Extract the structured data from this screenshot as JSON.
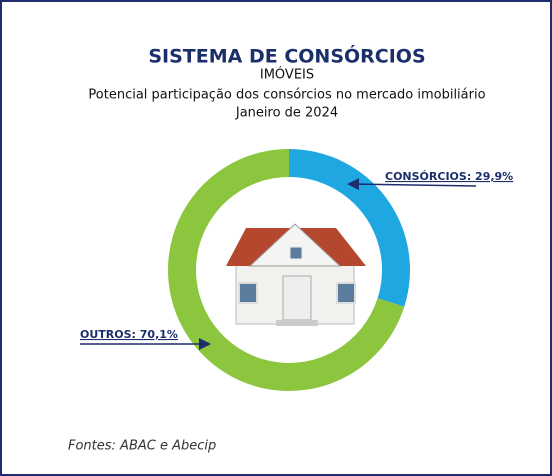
{
  "chart_data": {
    "type": "donut",
    "title": "SISTEMA DE CONSÓRCIOS",
    "subtitle": [
      "IMÓVEIS",
      "Potencial participação dos consórcios no mercado imobiliário",
      "Janeiro de 2024"
    ],
    "values": [
      29.9,
      70.1
    ],
    "value_labels": [
      "CONSÓRCIOS: 29,9%",
      "OUTROS: 70,1%"
    ],
    "colors": [
      "#1ea7e1",
      "#8cc63f"
    ],
    "source": "Fontes: ABAC e Abecip"
  }
}
